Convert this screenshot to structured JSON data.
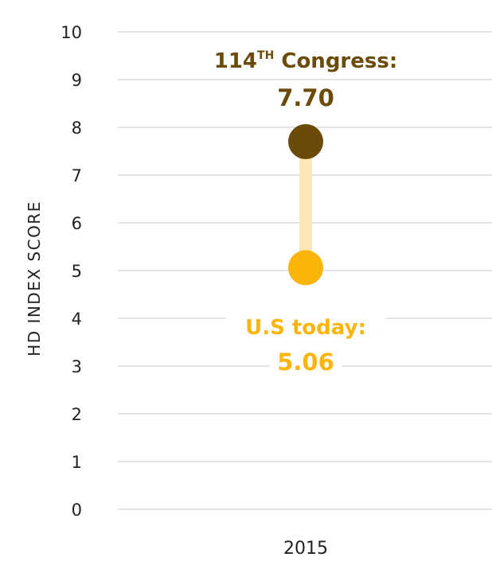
{
  "chart_data": {
    "type": "dumbbell",
    "title": "",
    "xlabel": "",
    "ylabel": "HD INDEX SCORE",
    "ylim": [
      0,
      10
    ],
    "y_ticks": [
      "0",
      "1",
      "2",
      "3",
      "4",
      "5",
      "6",
      "7",
      "8",
      "9",
      "10"
    ],
    "categories": [
      "2015"
    ],
    "grid": true,
    "series": [
      {
        "name": "114TH Congress",
        "values": [
          7.7
        ],
        "color": "#6b4a0a",
        "label": {
          "prefix": "114",
          "superscript": "TH",
          "suffix": " Congress:",
          "value": "7.70"
        }
      },
      {
        "name": "U.S today",
        "values": [
          5.06
        ],
        "color": "#fbb40a",
        "label": {
          "prefix": "U.S today:",
          "superscript": "",
          "suffix": "",
          "value": "5.06"
        }
      }
    ],
    "connector_color": "#fde6b8",
    "grid_color": "#e3e3e3"
  }
}
